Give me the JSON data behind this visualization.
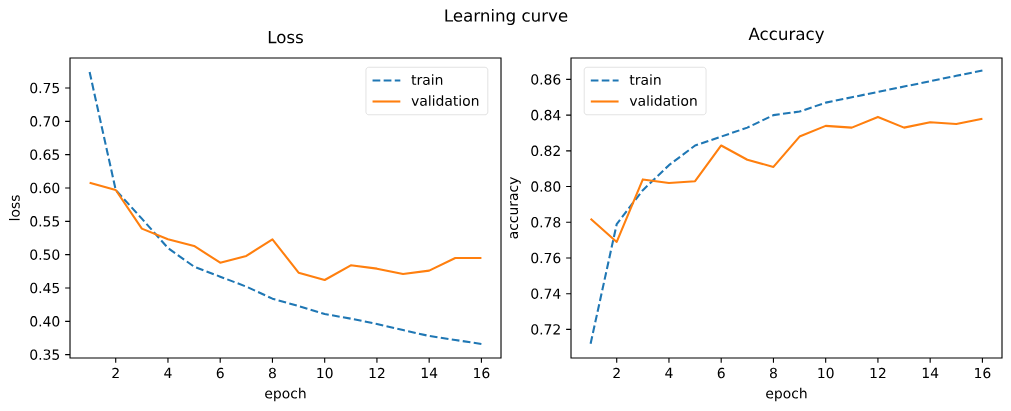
{
  "chart_data": [
    {
      "type": "line",
      "title": "Loss",
      "xlabel": "epoch",
      "ylabel": "loss",
      "annotations": [
        "Learning curve"
      ],
      "x": [
        1,
        2,
        3,
        4,
        5,
        6,
        7,
        8,
        9,
        10,
        11,
        12,
        13,
        14,
        15,
        16
      ],
      "series": [
        {
          "name": "train",
          "color": "#1f77b4",
          "line_style": "dashed",
          "values": [
            0.774,
            0.597,
            0.554,
            0.51,
            0.482,
            0.467,
            0.452,
            0.434,
            0.423,
            0.411,
            0.404,
            0.396,
            0.387,
            0.378,
            0.372,
            0.366
          ]
        },
        {
          "name": "validation",
          "color": "#ff7f0e",
          "line_style": "solid",
          "values": [
            0.608,
            0.597,
            0.539,
            0.523,
            0.513,
            0.488,
            0.498,
            0.523,
            0.473,
            0.462,
            0.484,
            0.479,
            0.471,
            0.476,
            0.495,
            0.495
          ]
        }
      ],
      "xlim": [
        0.25,
        16.75
      ],
      "ylim": [
        0.345,
        0.795
      ],
      "xticks": [
        2,
        4,
        6,
        8,
        10,
        12,
        14,
        16
      ],
      "yticks": [
        0.35,
        {
          "value": 0.4,
          "label": "0.40"
        },
        0.45,
        {
          "value": 0.5,
          "label": "0.50"
        },
        0.55,
        {
          "value": 0.6,
          "label": "0.60"
        },
        0.65,
        {
          "value": 0.7,
          "label": "0.70"
        },
        0.75
      ],
      "legend": "top right"
    },
    {
      "type": "line",
      "title": "Accuracy",
      "xlabel": "epoch",
      "ylabel": "accuracy",
      "x": [
        1,
        2,
        3,
        4,
        5,
        6,
        7,
        8,
        9,
        10,
        11,
        12,
        13,
        14,
        15,
        16
      ],
      "series": [
        {
          "name": "train",
          "color": "#1f77b4",
          "line_style": "dashed",
          "values": [
            0.712,
            0.779,
            0.798,
            0.812,
            0.823,
            0.828,
            0.833,
            0.84,
            0.842,
            0.847,
            0.85,
            0.853,
            0.856,
            0.859,
            0.862,
            0.865
          ]
        },
        {
          "name": "validation",
          "color": "#ff7f0e",
          "line_style": "solid",
          "values": [
            0.782,
            0.769,
            0.804,
            0.802,
            0.803,
            0.823,
            0.815,
            0.811,
            0.828,
            0.834,
            0.833,
            0.839,
            0.833,
            0.836,
            0.835,
            0.838
          ]
        }
      ],
      "xlim": [
        0.25,
        16.75
      ],
      "ylim": [
        0.704,
        0.872
      ],
      "xticks": [
        2,
        4,
        6,
        8,
        10,
        12,
        14,
        16
      ],
      "yticks": [
        0.72,
        0.74,
        0.76,
        0.78,
        {
          "value": 0.8,
          "label": "0.80"
        },
        0.82,
        0.84,
        0.86
      ],
      "legend": "top left"
    }
  ]
}
